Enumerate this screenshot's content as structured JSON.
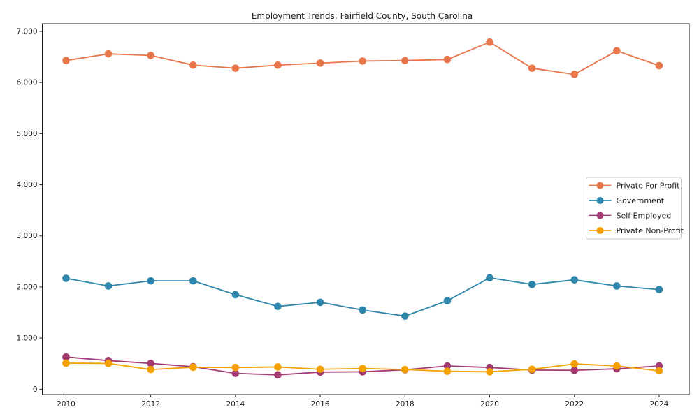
{
  "title": "Employment Trends: Fairfield County, South Carolina",
  "chart_data": {
    "type": "line",
    "title": "Employment Trends: Fairfield County, South Carolina",
    "xlabel": "",
    "ylabel": "",
    "grid": false,
    "legend_position": "center-right",
    "x": [
      2010,
      2011,
      2012,
      2013,
      2014,
      2015,
      2016,
      2017,
      2018,
      2019,
      2020,
      2021,
      2022,
      2023,
      2024
    ],
    "x_tick_years": [
      2010,
      2012,
      2014,
      2016,
      2018,
      2020,
      2022,
      2024
    ],
    "x_tick_labels": [
      "2010",
      "2012",
      "2014",
      "2016",
      "2018",
      "2020",
      "2022",
      "2024"
    ],
    "y_ticks": [
      0,
      1000,
      2000,
      3000,
      4000,
      5000,
      6000,
      7000
    ],
    "y_tick_labels": [
      "0",
      "1,000",
      "2,000",
      "3,000",
      "4,000",
      "5,000",
      "6,000",
      "7,000"
    ],
    "xlim": [
      2009.44,
      2024.71
    ],
    "ylim": [
      -105,
      7150
    ],
    "series": [
      {
        "name": "Private For-Profit",
        "color": "#E8764B",
        "values": [
          6430,
          6560,
          6530,
          6340,
          6280,
          6340,
          6380,
          6420,
          6430,
          6450,
          6790,
          6280,
          6160,
          6620,
          6330
        ]
      },
      {
        "name": "Government",
        "color": "#2E86AB",
        "values": [
          2170,
          2020,
          2120,
          2120,
          1850,
          1620,
          1700,
          1550,
          1430,
          1730,
          2180,
          2050,
          2140,
          2020,
          1950
        ]
      },
      {
        "name": "Self-Employed",
        "color": "#A23B72",
        "values": [
          630,
          560,
          505,
          440,
          310,
          280,
          335,
          340,
          380,
          455,
          425,
          375,
          370,
          400,
          455
        ]
      },
      {
        "name": "Private Non-Profit",
        "color": "#F5A002",
        "values": [
          510,
          505,
          385,
          430,
          425,
          435,
          390,
          405,
          385,
          350,
          340,
          390,
          495,
          455,
          360
        ]
      }
    ]
  }
}
